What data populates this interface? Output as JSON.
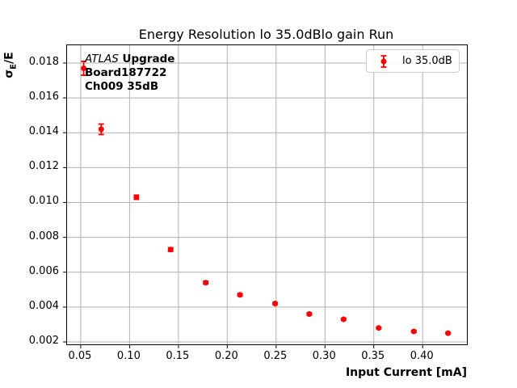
{
  "title": "Energy Resolution lo 35.0dBlo gain Run",
  "axes": {
    "xlabel": "Input Current [mA]",
    "ylabel": {
      "sigma": "σ",
      "sub": "E",
      "rest": "/E"
    }
  },
  "annotation": {
    "atlas": "ATLAS",
    "upgrade": " Upgrade",
    "line2": "Board187722",
    "line3": "Ch009 35dB"
  },
  "legend": {
    "label": "lo 35.0dB"
  },
  "colors": {
    "marker": "#ff0000",
    "grid": "#b0b0b0",
    "spine": "#000000",
    "legend_border": "#cccccc"
  },
  "chart_data": {
    "type": "scatter",
    "title": "Energy Resolution lo 35.0dBlo gain Run",
    "xlabel": "Input Current [mA]",
    "ylabel": "sigma_E/E",
    "grid": true,
    "legend_position": "upper right",
    "xlim": [
      0.036,
      0.4453
    ],
    "ylim": [
      0.00186,
      0.01902
    ],
    "x_ticks": [
      0.05,
      0.1,
      0.15,
      0.2,
      0.25,
      0.3,
      0.35,
      0.4
    ],
    "x_tick_labels": [
      "0.05",
      "0.10",
      "0.15",
      "0.20",
      "0.25",
      "0.30",
      "0.35",
      "0.40"
    ],
    "y_ticks": [
      0.002,
      0.004,
      0.006,
      0.008,
      0.01,
      0.012,
      0.014,
      0.016,
      0.018
    ],
    "y_tick_labels": [
      "0.002",
      "0.004",
      "0.006",
      "0.008",
      "0.010",
      "0.012",
      "0.014",
      "0.016",
      "0.018"
    ],
    "series": [
      {
        "name": "lo 35.0dB",
        "color": "#ff0000",
        "marker": "circle-with-errorbar",
        "x": [
          0.053,
          0.071,
          0.107,
          0.142,
          0.178,
          0.213,
          0.249,
          0.284,
          0.319,
          0.355,
          0.391,
          0.426
        ],
        "y": [
          0.0177,
          0.0142,
          0.0103,
          0.0073,
          0.0054,
          0.0047,
          0.0042,
          0.0036,
          0.0033,
          0.0028,
          0.0026,
          0.0025
        ],
        "yerr": [
          0.0004,
          0.0003,
          0.00012,
          0.0001,
          8e-05,
          7e-05,
          6e-05,
          6e-05,
          5e-05,
          5e-05,
          5e-05,
          4e-05
        ]
      }
    ]
  }
}
